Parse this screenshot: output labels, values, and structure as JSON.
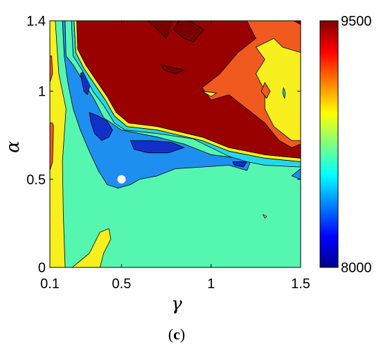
{
  "chart_data": {
    "type": "heatmap",
    "subtype": "filled-contour",
    "panel_label": {
      "open": "(",
      "letter": "c",
      "close": ")"
    },
    "xlabel": "γ",
    "ylabel": "α",
    "xlim": [
      0.1,
      1.5
    ],
    "ylim": [
      0,
      1.4
    ],
    "xticks": [
      {
        "value": 0.1,
        "label": "0.1"
      },
      {
        "value": 0.5,
        "label": "0.5"
      },
      {
        "value": 1.0,
        "label": "1"
      },
      {
        "value": 1.5,
        "label": "1.5"
      }
    ],
    "yticks": [
      {
        "value": 0,
        "label": "0"
      },
      {
        "value": 0.5,
        "label": "0.5"
      },
      {
        "value": 1.0,
        "label": "1"
      },
      {
        "value": 1.4,
        "label": "1.4"
      }
    ],
    "colorbar": {
      "min": 8000,
      "max": 9500,
      "min_label": "8000",
      "max_label": "9500",
      "colormap": "jet"
    },
    "marker": {
      "x": 0.5,
      "y": 0.5,
      "color": "#ffffff"
    },
    "regions": [
      {
        "name": "background",
        "level": 8900,
        "color": "#55f7b0",
        "points": [
          [
            0.1,
            0
          ],
          [
            1.5,
            0
          ],
          [
            1.5,
            1.4
          ],
          [
            0.1,
            1.4
          ]
        ]
      },
      {
        "name": "left-yellow-band",
        "level": 9050,
        "color": "#f8ef1e",
        "points": [
          [
            0.1,
            0
          ],
          [
            0.185,
            0
          ],
          [
            0.175,
            0.3
          ],
          [
            0.17,
            0.6
          ],
          [
            0.19,
            0.9
          ],
          [
            0.15,
            1.1
          ],
          [
            0.13,
            1.4
          ],
          [
            0.1,
            1.4
          ]
        ]
      },
      {
        "name": "left-orange-strip",
        "level": 9250,
        "color": "#f05a1e",
        "points": [
          [
            0.1,
            0.55
          ],
          [
            0.115,
            0.6
          ],
          [
            0.12,
            0.8
          ],
          [
            0.115,
            0.82
          ],
          [
            0.1,
            0.82
          ]
        ]
      },
      {
        "name": "left-orange-strip-top",
        "level": 9250,
        "color": "#f05a1e",
        "points": [
          [
            0.1,
            1.05
          ],
          [
            0.115,
            1.1
          ],
          [
            0.11,
            1.2
          ],
          [
            0.1,
            1.2
          ]
        ]
      },
      {
        "name": "bottom-yellow-spike",
        "level": 9050,
        "color": "#f8ef1e",
        "points": [
          [
            0.225,
            0
          ],
          [
            0.32,
            0.08
          ],
          [
            0.36,
            0.16
          ],
          [
            0.38,
            0.2
          ],
          [
            0.43,
            0.22
          ],
          [
            0.44,
            0.16
          ],
          [
            0.4,
            0.08
          ],
          [
            0.38,
            0
          ],
          [
            0.33,
            0
          ]
        ]
      },
      {
        "name": "blue-valley",
        "level": 8500,
        "color": "#1e8ff0",
        "points": [
          [
            0.185,
            1.4
          ],
          [
            0.19,
            1.2
          ],
          [
            0.23,
            1.15
          ],
          [
            0.29,
            1.05
          ],
          [
            0.35,
            0.95
          ],
          [
            0.4,
            0.85
          ],
          [
            0.5,
            0.78
          ],
          [
            0.7,
            0.74
          ],
          [
            0.85,
            0.7
          ],
          [
            1.0,
            0.64
          ],
          [
            1.15,
            0.62
          ],
          [
            1.22,
            0.6
          ],
          [
            1.2,
            0.55
          ],
          [
            1.1,
            0.58
          ],
          [
            0.95,
            0.57
          ],
          [
            0.8,
            0.56
          ],
          [
            0.7,
            0.52
          ],
          [
            0.6,
            0.5
          ],
          [
            0.55,
            0.47
          ],
          [
            0.48,
            0.45
          ],
          [
            0.42,
            0.47
          ],
          [
            0.37,
            0.55
          ],
          [
            0.32,
            0.66
          ],
          [
            0.27,
            0.78
          ],
          [
            0.23,
            0.9
          ],
          [
            0.2,
            1.05
          ],
          [
            0.18,
            1.2
          ],
          [
            0.17,
            1.4
          ]
        ]
      },
      {
        "name": "dark-blue-1",
        "level": 8200,
        "color": "#1230c8",
        "points": [
          [
            0.27,
            1.1
          ],
          [
            0.3,
            1.12
          ],
          [
            0.33,
            1.06
          ],
          [
            0.31,
            0.98
          ],
          [
            0.29,
            1.0
          ]
        ]
      },
      {
        "name": "dark-blue-2",
        "level": 8200,
        "color": "#1230c8",
        "points": [
          [
            0.32,
            0.88
          ],
          [
            0.37,
            0.86
          ],
          [
            0.42,
            0.83
          ],
          [
            0.45,
            0.78
          ],
          [
            0.43,
            0.74
          ],
          [
            0.39,
            0.72
          ],
          [
            0.35,
            0.76
          ],
          [
            0.33,
            0.82
          ]
        ]
      },
      {
        "name": "dark-blue-3",
        "level": 8200,
        "color": "#1230c8",
        "points": [
          [
            0.55,
            0.72
          ],
          [
            0.66,
            0.72
          ],
          [
            0.78,
            0.71
          ],
          [
            0.85,
            0.68
          ],
          [
            0.76,
            0.65
          ],
          [
            0.65,
            0.65
          ],
          [
            0.57,
            0.67
          ]
        ]
      },
      {
        "name": "dark-blue-4",
        "level": 8200,
        "color": "#1230c8",
        "points": [
          [
            1.12,
            0.6
          ],
          [
            1.2,
            0.6
          ],
          [
            1.18,
            0.57
          ],
          [
            1.13,
            0.58
          ]
        ]
      },
      {
        "name": "cyan-rim",
        "level": 8700,
        "color": "#22d8ee",
        "points": [
          [
            0.22,
            1.4
          ],
          [
            0.23,
            1.2
          ],
          [
            0.28,
            1.12
          ],
          [
            0.34,
            1.0
          ],
          [
            0.4,
            0.92
          ],
          [
            0.46,
            0.82
          ],
          [
            0.52,
            0.78
          ],
          [
            0.7,
            0.76
          ],
          [
            0.9,
            0.73
          ],
          [
            1.0,
            0.68
          ],
          [
            1.1,
            0.63
          ],
          [
            1.2,
            0.6
          ],
          [
            1.3,
            0.58
          ],
          [
            1.5,
            0.57
          ],
          [
            1.5,
            0.6
          ],
          [
            1.3,
            0.62
          ],
          [
            1.1,
            0.66
          ],
          [
            0.95,
            0.72
          ],
          [
            0.7,
            0.78
          ],
          [
            0.53,
            0.8
          ],
          [
            0.46,
            0.86
          ],
          [
            0.41,
            0.95
          ],
          [
            0.35,
            1.04
          ],
          [
            0.29,
            1.13
          ],
          [
            0.245,
            1.22
          ],
          [
            0.235,
            1.4
          ]
        ]
      },
      {
        "name": "yellow-rim",
        "level": 9050,
        "color": "#f8ef1e",
        "points": [
          [
            0.235,
            1.4
          ],
          [
            0.245,
            1.22
          ],
          [
            0.29,
            1.13
          ],
          [
            0.35,
            1.04
          ],
          [
            0.41,
            0.95
          ],
          [
            0.46,
            0.86
          ],
          [
            0.53,
            0.8
          ],
          [
            0.7,
            0.78
          ],
          [
            0.95,
            0.72
          ],
          [
            1.1,
            0.66
          ],
          [
            1.3,
            0.62
          ],
          [
            1.5,
            0.6
          ],
          [
            1.5,
            0.62
          ],
          [
            1.3,
            0.64
          ],
          [
            1.1,
            0.68
          ],
          [
            0.95,
            0.74
          ],
          [
            0.7,
            0.8
          ],
          [
            0.54,
            0.82
          ],
          [
            0.47,
            0.88
          ],
          [
            0.42,
            0.97
          ],
          [
            0.36,
            1.06
          ],
          [
            0.3,
            1.15
          ],
          [
            0.255,
            1.24
          ],
          [
            0.25,
            1.4
          ]
        ]
      },
      {
        "name": "dark-red-plateau",
        "level": 9450,
        "color": "#990000",
        "points": [
          [
            0.25,
            1.4
          ],
          [
            0.255,
            1.24
          ],
          [
            0.3,
            1.15
          ],
          [
            0.36,
            1.06
          ],
          [
            0.42,
            0.97
          ],
          [
            0.47,
            0.88
          ],
          [
            0.54,
            0.82
          ],
          [
            0.7,
            0.8
          ],
          [
            0.95,
            0.74
          ],
          [
            1.1,
            0.68
          ],
          [
            1.3,
            0.64
          ],
          [
            1.5,
            0.62
          ],
          [
            1.5,
            1.4
          ]
        ]
      },
      {
        "name": "orange-lobe",
        "level": 9250,
        "color": "#f05a1e",
        "points": [
          [
            1.2,
            1.4
          ],
          [
            1.25,
            1.3
          ],
          [
            1.15,
            1.22
          ],
          [
            1.05,
            1.1
          ],
          [
            0.95,
            1.02
          ],
          [
            1.0,
            0.95
          ],
          [
            1.1,
            0.98
          ],
          [
            1.2,
            0.9
          ],
          [
            1.3,
            0.82
          ],
          [
            1.38,
            0.72
          ],
          [
            1.45,
            0.68
          ],
          [
            1.5,
            0.7
          ],
          [
            1.5,
            1.4
          ]
        ]
      },
      {
        "name": "yellow-lobe",
        "level": 9050,
        "color": "#f8ef1e",
        "points": [
          [
            1.25,
            1.25
          ],
          [
            1.3,
            1.18
          ],
          [
            1.25,
            1.1
          ],
          [
            1.3,
            1.0
          ],
          [
            1.3,
            0.9
          ],
          [
            1.35,
            0.8
          ],
          [
            1.45,
            0.72
          ],
          [
            1.5,
            0.72
          ],
          [
            1.5,
            1.22
          ],
          [
            1.4,
            1.25
          ],
          [
            1.35,
            1.3
          ]
        ]
      },
      {
        "name": "orange-in-yellow",
        "level": 9250,
        "color": "#f05a1e",
        "points": [
          [
            1.3,
            1.05
          ],
          [
            1.33,
            1.0
          ],
          [
            1.31,
            0.96
          ],
          [
            1.28,
            1.0
          ]
        ]
      },
      {
        "name": "cyan-speck",
        "level": 8700,
        "color": "#22d8ee",
        "points": [
          [
            1.405,
            1.02
          ],
          [
            1.415,
            0.99
          ],
          [
            1.41,
            0.96
          ],
          [
            1.4,
            0.99
          ]
        ]
      },
      {
        "name": "yellow-speck-1",
        "level": 9050,
        "color": "#f8ef1e",
        "points": [
          [
            0.95,
            1.0
          ],
          [
            1.03,
            0.99
          ],
          [
            1.0,
            0.97
          ]
        ]
      },
      {
        "name": "yellow-speck-2",
        "level": 9050,
        "color": "#f8ef1e",
        "points": [
          [
            1.29,
            0.3
          ],
          [
            1.31,
            0.29
          ],
          [
            1.3,
            0.28
          ]
        ]
      },
      {
        "name": "blue-edge-right",
        "level": 8500,
        "color": "#1e8ff0",
        "points": [
          [
            1.45,
            0.52
          ],
          [
            1.5,
            0.5
          ],
          [
            1.5,
            0.56
          ]
        ]
      },
      {
        "name": "crimson-1",
        "level": 9480,
        "color": "#7a0000",
        "points": [
          [
            0.65,
            1.4
          ],
          [
            0.7,
            1.35
          ],
          [
            0.75,
            1.3
          ],
          [
            0.78,
            1.4
          ]
        ]
      },
      {
        "name": "crimson-2",
        "level": 9480,
        "color": "#7a0000",
        "points": [
          [
            0.79,
            1.35
          ],
          [
            0.85,
            1.3
          ],
          [
            0.9,
            1.28
          ],
          [
            0.96,
            1.35
          ],
          [
            0.88,
            1.4
          ],
          [
            0.82,
            1.4
          ]
        ]
      },
      {
        "name": "crimson-3",
        "level": 9480,
        "color": "#7a0000",
        "points": [
          [
            0.72,
            1.15
          ],
          [
            0.85,
            1.12
          ],
          [
            0.8,
            1.1
          ],
          [
            0.74,
            1.12
          ]
        ]
      },
      {
        "name": "crimson-4",
        "level": 9480,
        "color": "#7a0000",
        "points": [
          [
            1.46,
            1.4
          ],
          [
            1.5,
            1.38
          ],
          [
            1.5,
            1.4
          ]
        ]
      }
    ]
  }
}
